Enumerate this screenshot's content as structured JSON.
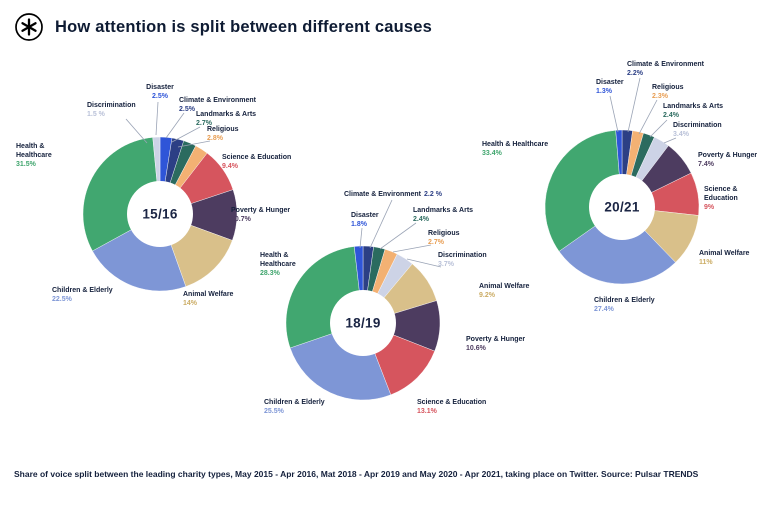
{
  "header": {
    "title": "How attention is split between different causes",
    "logo": "pulsar-asterisk-logo"
  },
  "footer": {
    "caption": "Share of voice split between the leading charity types, May 2015 - Apr 2016, Mat 2018 - Apr 2019 and May 2020 - Apr 2021, taking place on Twitter. Source: Pulsar TRENDS"
  },
  "colors": {
    "ink": "#14203C",
    "leader_line": "#9AA3B5",
    "causes": {
      "Health & Healthcare": {
        "slice": "#41A770",
        "text": "#3FA56D"
      },
      "Children & Elderly": {
        "slice": "#7E96D6",
        "text": "#7E96D6"
      },
      "Animal Welfare": {
        "slice": "#D9C08A",
        "text": "#CBAC64"
      },
      "Poverty & Hunger": {
        "slice": "#4D3C60",
        "text": "#4D3C60"
      },
      "Science & Education": {
        "slice": "#D6555E",
        "text": "#D6555E"
      },
      "Religious": {
        "slice": "#F3B173",
        "text": "#E89E53"
      },
      "Landmarks & Arts": {
        "slice": "#2B6B5F",
        "text": "#2B6B5F"
      },
      "Climate & Environment": {
        "slice": "#2C3F85",
        "text": "#2C3F85"
      },
      "Disaster": {
        "slice": "#2F55D8",
        "text": "#2F55D8"
      },
      "Discrimination": {
        "slice": "#CDD3E6",
        "text": "#B9C1D8"
      }
    }
  },
  "chart_data": [
    {
      "type": "pie",
      "period": "15/16",
      "slices": [
        {
          "label": "Disaster",
          "value": 2.5,
          "display": "2.5%"
        },
        {
          "label": "Climate & Environment",
          "value": 2.5,
          "display": "2.5%"
        },
        {
          "label": "Landmarks & Arts",
          "value": 2.7,
          "display": "2.7%"
        },
        {
          "label": "Religious",
          "value": 2.8,
          "display": "2.8%"
        },
        {
          "label": "Science & Education",
          "value": 9.4,
          "display": "9.4%"
        },
        {
          "label": "Poverty & Hunger",
          "value": 10.7,
          "display": "10.7%"
        },
        {
          "label": "Animal Welfare",
          "value": 14,
          "display": "14%"
        },
        {
          "label": "Children & Elderly",
          "value": 22.5,
          "display": "22.5%"
        },
        {
          "label": "Health & Healthcare",
          "value": 31.5,
          "display": "31.5%"
        },
        {
          "label": "Discrimination",
          "value": 1.5,
          "display": "1.5 %"
        }
      ]
    },
    {
      "type": "pie",
      "period": "18/19",
      "slices": [
        {
          "label": "Climate & Environment",
          "value": 2.2,
          "display": "2.2 %"
        },
        {
          "label": "Landmarks & Arts",
          "value": 2.4,
          "display": "2.4%"
        },
        {
          "label": "Religious",
          "value": 2.7,
          "display": "2.7%"
        },
        {
          "label": "Discrimination",
          "value": 3.7,
          "display": "3.7%"
        },
        {
          "label": "Animal Welfare",
          "value": 9.2,
          "display": "9.2%"
        },
        {
          "label": "Poverty & Hunger",
          "value": 10.6,
          "display": "10.6%"
        },
        {
          "label": "Science & Education",
          "value": 13.1,
          "display": "13.1%"
        },
        {
          "label": "Children & Elderly",
          "value": 25.5,
          "display": "25.5%"
        },
        {
          "label": "Health & Healthcare",
          "value": 28.3,
          "display": "28.3%"
        },
        {
          "label": "Disaster",
          "value": 1.8,
          "display": "1.8%"
        }
      ]
    },
    {
      "type": "pie",
      "period": "20/21",
      "slices": [
        {
          "label": "Climate & Environment",
          "value": 2.2,
          "display": "2.2%"
        },
        {
          "label": "Religious",
          "value": 2.3,
          "display": "2.3%"
        },
        {
          "label": "Landmarks & Arts",
          "value": 2.4,
          "display": "2.4%"
        },
        {
          "label": "Discrimination",
          "value": 3.4,
          "display": "3.4%"
        },
        {
          "label": "Poverty & Hunger",
          "value": 7.4,
          "display": "7.4%"
        },
        {
          "label": "Science & Education",
          "value": 9,
          "display": "9%"
        },
        {
          "label": "Animal Welfare",
          "value": 11,
          "display": "11%"
        },
        {
          "label": "Children & Elderly",
          "value": 27.4,
          "display": "27.4%"
        },
        {
          "label": "Health & Healthcare",
          "value": 33.4,
          "display": "33.4%"
        },
        {
          "label": "Disaster",
          "value": 1.3,
          "display": "1.3%"
        }
      ]
    }
  ]
}
